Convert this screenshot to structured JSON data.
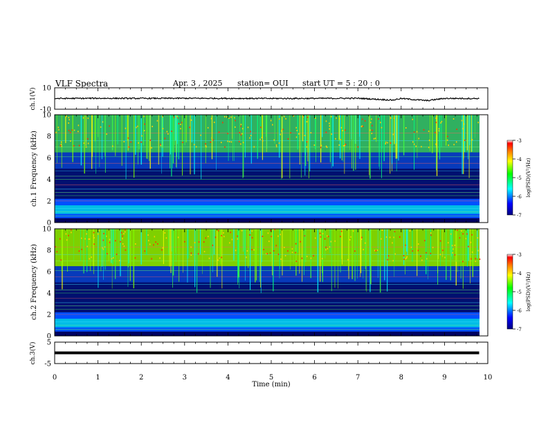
{
  "header": {
    "title": "VLF Spectra",
    "date": "Apr. 3 , 2025",
    "station": "station= OUI",
    "start": "start UT = 5 : 20 : 0"
  },
  "colorbar": {
    "label": "log(PSD)(V²/Hz)",
    "ticks": [
      -3,
      -4,
      -5,
      -6,
      -7
    ],
    "colormap": [
      "#000080",
      "#0000ff",
      "#00ffff",
      "#00ff00",
      "#ffff00",
      "#ff8000",
      "#ff0000",
      "#ffffff"
    ]
  },
  "chart_data": [
    {
      "type": "line",
      "panel": "ch1-waveform",
      "ylabel": "ch.1(V)",
      "ylim": [
        -10,
        10
      ],
      "yticks": [
        10,
        -10
      ],
      "x": [
        0,
        1,
        2,
        3,
        4,
        5,
        6,
        7,
        7.8,
        8,
        8.6,
        9,
        9.8
      ],
      "y": [
        0,
        0.2,
        0.1,
        0.2,
        0.1,
        0,
        0.1,
        0.2,
        -1.5,
        0,
        -2,
        0.1,
        0
      ]
    },
    {
      "type": "heatmap",
      "panel": "ch1-spectrogram",
      "ylabel": "ch.1 Frequency (kHz)",
      "ylim": [
        0,
        10
      ],
      "yticks": [
        0,
        2,
        4,
        6,
        8,
        10
      ],
      "xlim": [
        0,
        10
      ],
      "zlim": [
        -7,
        -3
      ],
      "zlabel": "log(PSD)(V²/Hz)"
    },
    {
      "type": "heatmap",
      "panel": "ch2-spectrogram",
      "ylabel": "ch.2 Frequency (kHz)",
      "ylim": [
        0,
        10
      ],
      "yticks": [
        0,
        2,
        4,
        6,
        8,
        10
      ],
      "xlim": [
        0,
        10
      ],
      "zlim": [
        -7,
        -3
      ],
      "zlabel": "log(PSD)(V²/Hz)"
    },
    {
      "type": "line",
      "panel": "ch3-waveform",
      "ylabel": "ch.3(V)",
      "ylim": [
        -5,
        5
      ],
      "yticks": [
        5,
        -5
      ],
      "x": [
        0,
        9.8
      ],
      "y": [
        0,
        0
      ]
    }
  ],
  "xaxis": {
    "label": "Time (min)",
    "ticks": [
      0,
      1,
      2,
      3,
      4,
      5,
      6,
      7,
      8,
      9,
      10
    ],
    "xlim": [
      0,
      10
    ]
  }
}
